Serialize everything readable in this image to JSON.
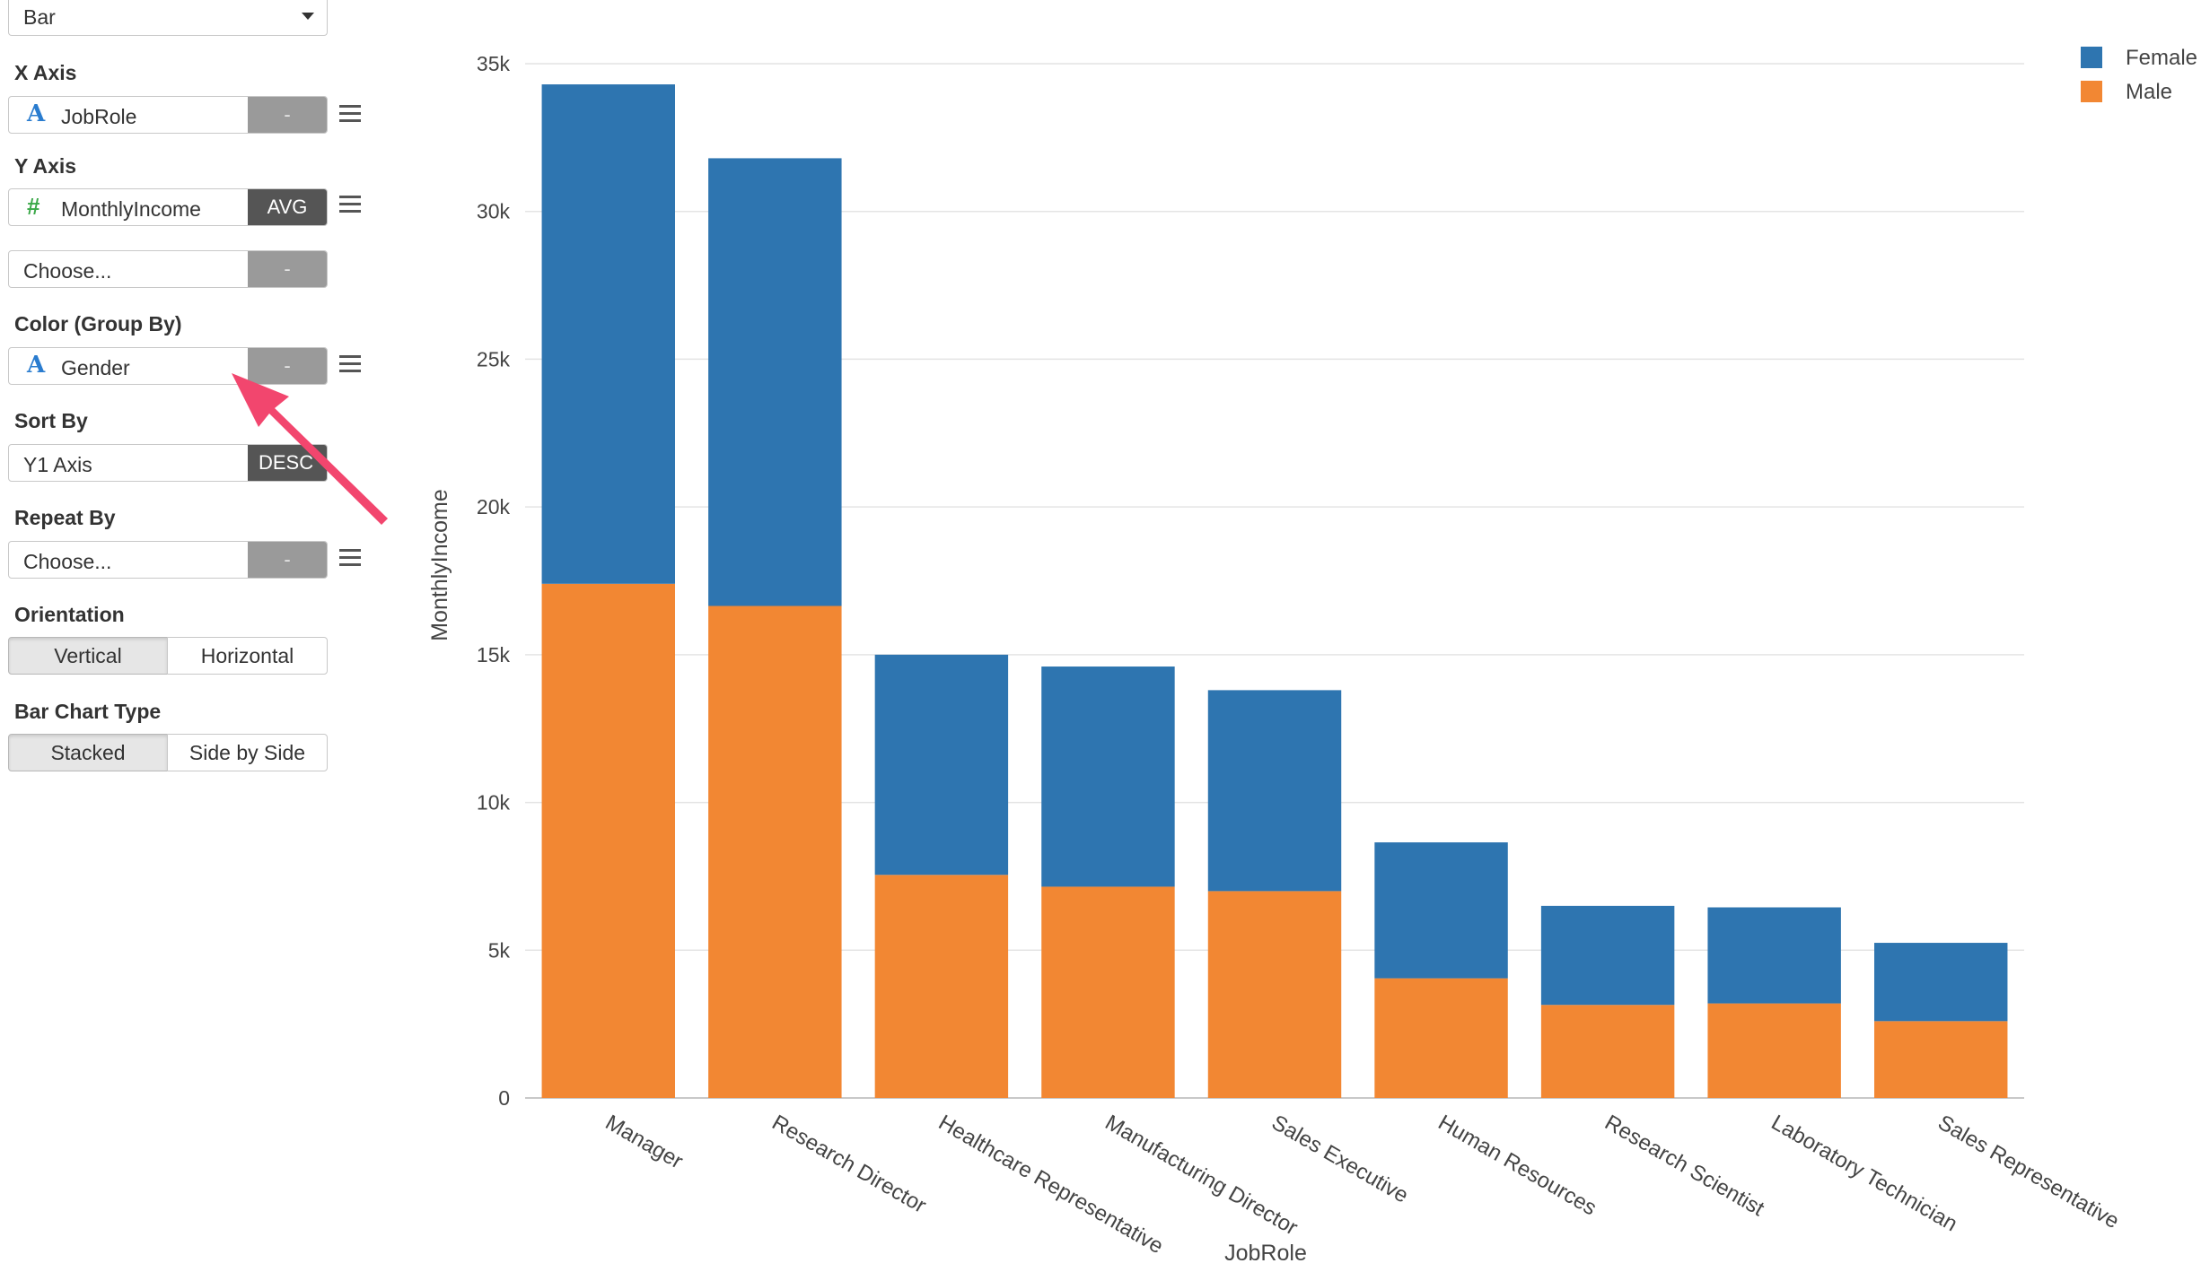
{
  "settings": {
    "chart_type": "Bar",
    "x_axis": {
      "label": "X Axis",
      "type_icon": "A",
      "field": "JobRole",
      "agg": "-"
    },
    "y_axis": {
      "label": "Y Axis",
      "type_icon": "#",
      "field": "MonthlyIncome",
      "agg": "AVG"
    },
    "y2": {
      "placeholder": "Choose...",
      "agg": "-"
    },
    "color": {
      "label": "Color (Group By)",
      "type_icon": "A",
      "field": "Gender",
      "agg": "-"
    },
    "sort": {
      "label": "Sort By",
      "field": "Y1 Axis",
      "agg": "DESC"
    },
    "repeat": {
      "label": "Repeat By",
      "placeholder": "Choose...",
      "agg": "-"
    },
    "orientation": {
      "label": "Orientation",
      "options": [
        "Vertical",
        "Horizontal"
      ],
      "selected": "Vertical"
    },
    "bar_type": {
      "label": "Bar Chart Type",
      "options": [
        "Stacked",
        "Side by Side"
      ],
      "selected": "Stacked"
    }
  },
  "chart_data": {
    "type": "bar",
    "stacked": true,
    "orientation": "vertical",
    "xlabel": "JobRole",
    "ylabel": "MonthlyIncome",
    "ylim": [
      0,
      35000
    ],
    "yticks": [
      "0",
      "5k",
      "10k",
      "15k",
      "20k",
      "25k",
      "30k",
      "35k"
    ],
    "grid": true,
    "legend_position": "top-right",
    "categories": [
      "Manager",
      "Research Director",
      "Healthcare Representative",
      "Manufacturing Director",
      "Sales Executive",
      "Human Resources",
      "Research Scientist",
      "Laboratory Technician",
      "Sales Representative"
    ],
    "series": [
      {
        "name": "Male",
        "color": "#f28733",
        "values": [
          17400,
          16650,
          7550,
          7150,
          7000,
          4050,
          3150,
          3200,
          2600
        ]
      },
      {
        "name": "Female",
        "color": "#2e75b0",
        "values": [
          16900,
          15150,
          7450,
          7450,
          6800,
          4600,
          3350,
          3250,
          2650
        ]
      }
    ],
    "legend": [
      "Female",
      "Male"
    ]
  }
}
